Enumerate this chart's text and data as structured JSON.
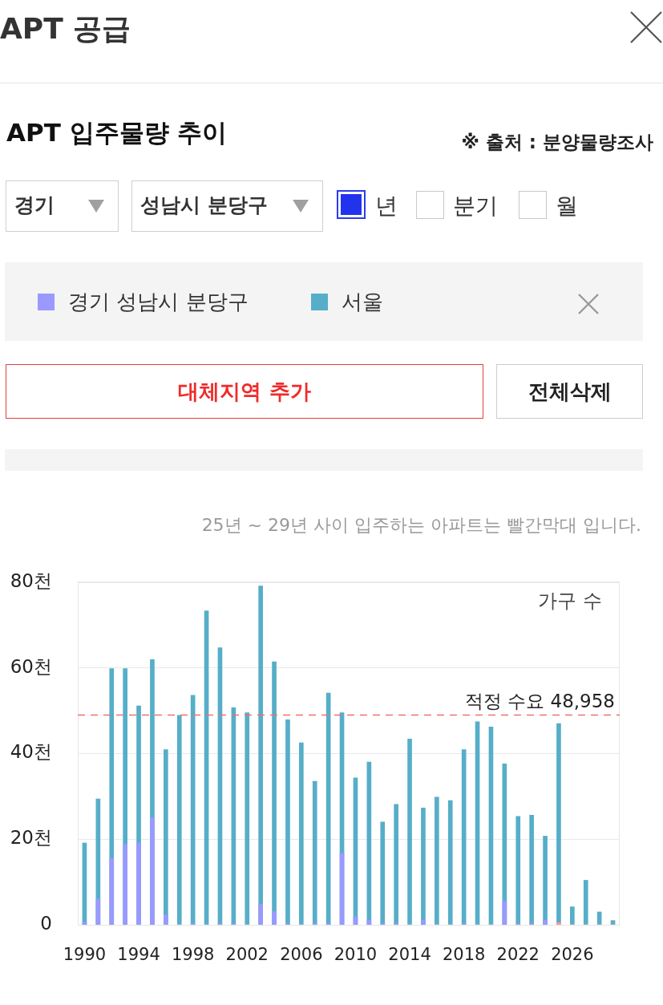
{
  "chart_data": {
    "type": "bar",
    "title": "APT 입주물량 추이",
    "subtitle": "25년 ~ 29년 사이 입주하는 아파트는 빨간막대 입니다.",
    "ylabel": "가구 수",
    "annotations": [
      "APT 공급",
      "※ 출처 : 분양물량조사",
      "경기",
      "성남시 분당구",
      "년",
      "분기",
      "월",
      "대체지역 추가",
      "전체삭제"
    ],
    "categories": [
      "1990",
      null,
      null,
      null,
      "1994",
      null,
      null,
      null,
      "1998",
      null,
      null,
      null,
      "2002",
      null,
      null,
      null,
      "2006",
      null,
      null,
      null,
      "2010",
      null,
      null,
      null,
      "2014",
      null,
      null,
      null,
      "2018",
      null,
      null,
      null,
      "2022",
      null,
      null,
      null,
      "2026",
      null,
      null,
      null
    ],
    "series": [
      {
        "name": "경기 성남시 분당구",
        "color": "#9999ff",
        "colors": [
          "#9999ff",
          "#9999ff",
          "#9999ff",
          "#9999ff",
          "#9999ff",
          "#9999ff",
          "#9999ff",
          "#9999ff",
          "#9999ff",
          "#9999ff",
          "#9999ff",
          "#9999ff",
          "#9999ff",
          "#9999ff",
          "#9999ff",
          "#9999ff",
          "#9999ff",
          "#9999ff",
          "#9999ff",
          "#9999ff",
          "#9999ff",
          "#9999ff",
          "#9999ff",
          "#9999ff",
          "#9999ff",
          "#9999ff",
          "#9999ff",
          "#9999ff",
          "#9999ff",
          "#9999ff",
          "#9999ff",
          "#9999ff",
          "#9999ff",
          "#9999ff",
          "#9999ff",
          "#ff9999",
          "#ff9999",
          "#ff9999",
          "#ff9999",
          "#ff9999"
        ],
        "values": [
          0.6,
          6,
          15.5,
          18.8,
          19.1,
          25,
          2.3,
          0,
          0.3,
          0,
          0.3,
          0.3,
          0,
          4.8,
          3.1,
          0.3,
          0,
          0.3,
          0.3,
          16.7,
          1.9,
          1.1,
          0.3,
          0.3,
          0,
          1.1,
          0,
          0,
          0.3,
          0,
          0,
          5.5,
          0.3,
          0.3,
          1.1,
          0.5,
          0,
          0,
          0,
          0
        ]
      },
      {
        "name": "서울",
        "color": "#56aec8",
        "values": [
          19.1,
          29.4,
          59.8,
          59.8,
          51.1,
          61.9,
          40.9,
          48.9,
          53.6,
          73.3,
          64.7,
          50.7,
          49.5,
          79.1,
          61.4,
          47.9,
          42.5,
          33.5,
          54.1,
          49.5,
          34.3,
          38,
          24,
          28.1,
          43.4,
          27.3,
          29.8,
          29,
          40.9,
          47.4,
          46.2,
          37.6,
          25.3,
          25.6,
          20.7,
          47,
          4.2,
          10.4,
          3,
          1
        ]
      }
    ],
    "ylim": [
      0,
      80
    ],
    "yticks": [
      0,
      {
        "value": 20,
        "label": "20천"
      },
      {
        "value": 40,
        "label": "40천"
      },
      {
        "value": 60,
        "label": "60천"
      },
      {
        "value": 80,
        "label": "80천"
      }
    ],
    "ref_lines": [
      {
        "axis": "y",
        "value": 48.958,
        "label": "적정 수요 48,958",
        "color": "#f07070",
        "line_style": "dashed"
      }
    ],
    "grid": "y",
    "legend": "top"
  }
}
